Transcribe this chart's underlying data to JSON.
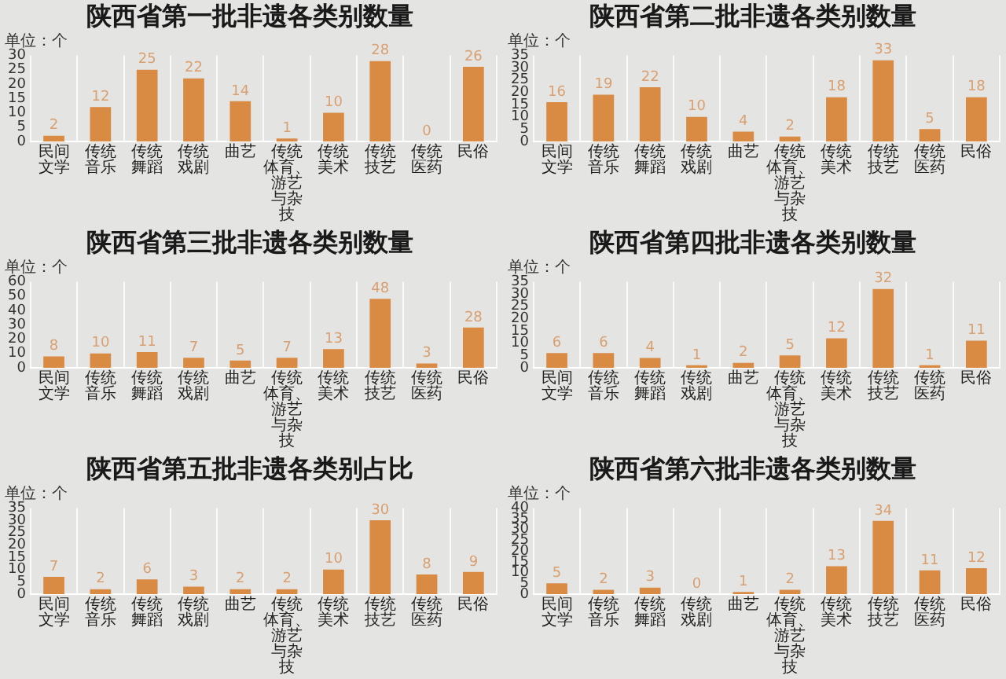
{
  "chart_data": [
    {
      "type": "bar",
      "title": "陕西省第一批非遗各类别数量",
      "ylabel": "单位：个",
      "categories": [
        "民间文学",
        "传统音乐",
        "传统舞蹈",
        "传统戏剧",
        "曲艺",
        "传统体育、游艺与杂技",
        "传统美术",
        "传统技艺",
        "传统医药",
        "民俗"
      ],
      "values": [
        2,
        12,
        25,
        22,
        14,
        1,
        10,
        28,
        0,
        26
      ],
      "color": "#d98a43",
      "ylim": [
        0,
        30
      ],
      "yticks": [
        0,
        5,
        10,
        15,
        20,
        25,
        30
      ],
      "grid": "x",
      "data_labels": true
    },
    {
      "type": "bar",
      "title": "陕西省第二批非遗各类别数量",
      "ylabel": "单位：个",
      "categories": [
        "民间文学",
        "传统音乐",
        "传统舞蹈",
        "传统戏剧",
        "曲艺",
        "传统体育、游艺与杂技",
        "传统美术",
        "传统技艺",
        "传统医药",
        "民俗"
      ],
      "values": [
        16,
        19,
        22,
        10,
        4,
        2,
        18,
        33,
        5,
        18
      ],
      "color": "#d98a43",
      "ylim": [
        0,
        35
      ],
      "yticks": [
        0,
        5,
        10,
        15,
        20,
        25,
        30,
        35
      ],
      "grid": "x",
      "data_labels": true
    },
    {
      "type": "bar",
      "title": "陕西省第三批非遗各类别数量",
      "ylabel": "单位：个",
      "categories": [
        "民间文学",
        "传统音乐",
        "传统舞蹈",
        "传统戏剧",
        "曲艺",
        "传统体育、游艺与杂技",
        "传统美术",
        "传统技艺",
        "传统医药",
        "民俗"
      ],
      "values": [
        8,
        10,
        11,
        7,
        5,
        7,
        13,
        48,
        3,
        28
      ],
      "color": "#d98a43",
      "ylim": [
        0,
        60
      ],
      "yticks": [
        0,
        10,
        20,
        30,
        40,
        50,
        60
      ],
      "grid": "x",
      "data_labels": true
    },
    {
      "type": "bar",
      "title": "陕西省第四批非遗各类别数量",
      "ylabel": "单位：个",
      "categories": [
        "民间文学",
        "传统音乐",
        "传统舞蹈",
        "传统戏剧",
        "曲艺",
        "传统体育、游艺与杂技",
        "传统美术",
        "传统技艺",
        "传统医药",
        "民俗"
      ],
      "values": [
        6,
        6,
        4,
        1,
        2,
        5,
        12,
        32,
        1,
        11
      ],
      "color": "#d98a43",
      "ylim": [
        0,
        35
      ],
      "yticks": [
        0,
        5,
        10,
        15,
        20,
        25,
        30,
        35
      ],
      "grid": "x",
      "data_labels": true
    },
    {
      "type": "bar",
      "title": "陕西省第五批非遗各类别占比",
      "ylabel": "单位：个",
      "categories": [
        "民间文学",
        "传统音乐",
        "传统舞蹈",
        "传统戏剧",
        "曲艺",
        "传统体育、游艺与杂技",
        "传统美术",
        "传统技艺",
        "传统医药",
        "民俗"
      ],
      "values": [
        7,
        2,
        6,
        3,
        2,
        2,
        10,
        30,
        8,
        9
      ],
      "color": "#d98a43",
      "ylim": [
        0,
        35
      ],
      "yticks": [
        0,
        5,
        10,
        15,
        20,
        25,
        30,
        35
      ],
      "grid": "x",
      "data_labels": true
    },
    {
      "type": "bar",
      "title": "陕西省第六批非遗各类别数量",
      "ylabel": "单位：个",
      "categories": [
        "民间文学",
        "传统音乐",
        "传统舞蹈",
        "传统戏剧",
        "曲艺",
        "传统体育、游艺与杂技",
        "传统美术",
        "传统技艺",
        "传统医药",
        "民俗"
      ],
      "values": [
        5,
        2,
        3,
        0,
        1,
        2,
        13,
        34,
        11,
        12
      ],
      "color": "#d98a43",
      "ylim": [
        0,
        40
      ],
      "yticks": [
        0,
        5,
        10,
        15,
        20,
        25,
        30,
        35,
        40
      ],
      "grid": "x",
      "data_labels": true
    }
  ]
}
